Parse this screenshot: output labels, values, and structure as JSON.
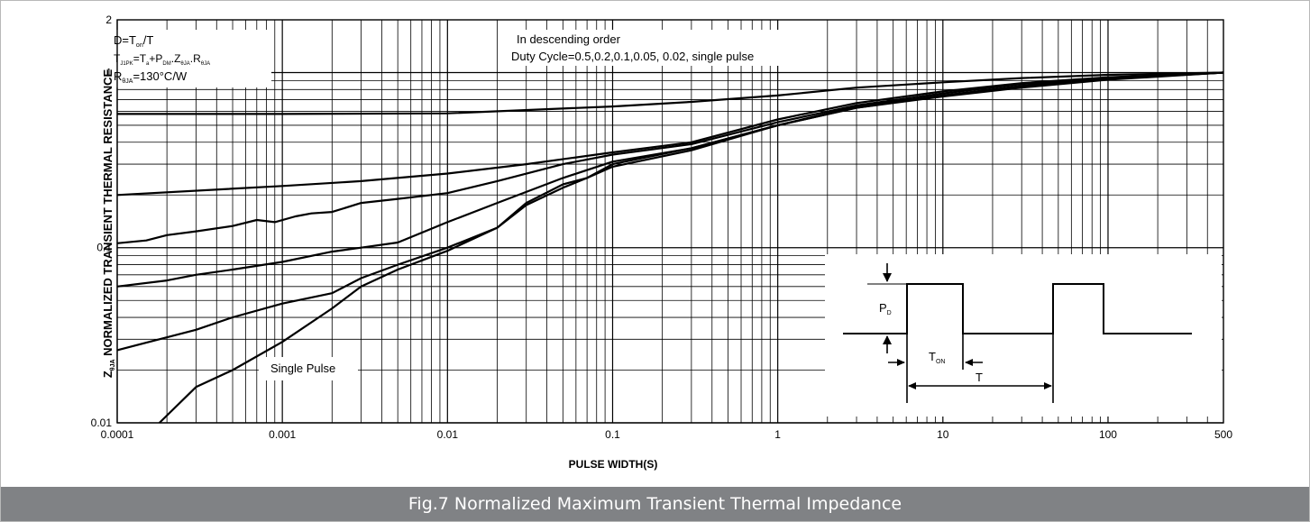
{
  "chart_data": {
    "type": "line",
    "x_scale": "log",
    "y_scale": "log",
    "xlim": [
      0.0001,
      500
    ],
    "ylim": [
      0.01,
      2
    ],
    "xlabel": "PULSE WIDTH(S)",
    "ylabel_main": "NORMALIZED TRANSIENT THERMAL RESISTANCE",
    "ylabel_prefix": "Z",
    "ylabel_sub": "θJA",
    "x_ticks": [
      {
        "v": 0.0001,
        "label": "0.0001"
      },
      {
        "v": 0.001,
        "label": "0.001"
      },
      {
        "v": 0.01,
        "label": "0.01"
      },
      {
        "v": 0.1,
        "label": "0.1"
      },
      {
        "v": 1,
        "label": "1"
      },
      {
        "v": 10,
        "label": "10"
      },
      {
        "v": 100,
        "label": "100"
      },
      {
        "v": 500,
        "label": "500"
      }
    ],
    "y_ticks": [
      {
        "v": 0.01,
        "label": "0.01"
      },
      {
        "v": 0.1,
        "label": "0.1"
      },
      {
        "v": 1,
        "label": "1"
      },
      {
        "v": 2,
        "label": "2"
      }
    ],
    "grid": true,
    "series": [
      {
        "x": [
          0.0001,
          0.001,
          0.01,
          0.1,
          0.3,
          1,
          3,
          10,
          30,
          100,
          500
        ],
        "y": [
          0.58,
          0.58,
          0.585,
          0.64,
          0.68,
          0.74,
          0.82,
          0.88,
          0.93,
          0.97,
          1.0
        ]
      },
      {
        "x": [
          0.0001,
          0.001,
          0.003,
          0.01,
          0.03,
          0.1,
          0.3,
          1,
          3,
          10,
          30,
          100,
          500
        ],
        "y": [
          0.2,
          0.225,
          0.24,
          0.265,
          0.3,
          0.35,
          0.4,
          0.54,
          0.67,
          0.78,
          0.87,
          0.94,
          1.0
        ]
      },
      {
        "x": [
          0.0001,
          0.00015,
          0.0002,
          0.0003,
          0.0005,
          0.0007,
          0.0009,
          0.0012,
          0.0015,
          0.002,
          0.003,
          0.005,
          0.01,
          0.02,
          0.05,
          0.1,
          0.3,
          1,
          3,
          10,
          30,
          100,
          500
        ],
        "y": [
          0.106,
          0.11,
          0.118,
          0.124,
          0.133,
          0.144,
          0.14,
          0.151,
          0.157,
          0.16,
          0.18,
          0.19,
          0.205,
          0.24,
          0.3,
          0.34,
          0.39,
          0.52,
          0.65,
          0.76,
          0.86,
          0.93,
          1.0
        ]
      },
      {
        "x": [
          0.0001,
          0.0002,
          0.0003,
          0.0005,
          0.001,
          0.002,
          0.003,
          0.005,
          0.01,
          0.02,
          0.05,
          0.1,
          0.3,
          1,
          3,
          10,
          30,
          100,
          500
        ],
        "y": [
          0.06,
          0.065,
          0.07,
          0.075,
          0.083,
          0.095,
          0.1,
          0.107,
          0.14,
          0.18,
          0.25,
          0.31,
          0.37,
          0.5,
          0.64,
          0.74,
          0.84,
          0.92,
          1.0
        ]
      },
      {
        "x": [
          0.0001,
          0.0003,
          0.0005,
          0.001,
          0.002,
          0.003,
          0.005,
          0.01,
          0.02,
          0.03,
          0.05,
          0.07,
          0.1,
          0.3,
          1,
          3,
          10,
          30,
          100,
          500
        ],
        "y": [
          0.026,
          0.034,
          0.04,
          0.048,
          0.055,
          0.067,
          0.08,
          0.1,
          0.13,
          0.175,
          0.22,
          0.25,
          0.3,
          0.37,
          0.5,
          0.63,
          0.74,
          0.83,
          0.92,
          1.0
        ]
      },
      {
        "x": [
          0.00018,
          0.0003,
          0.0005,
          0.001,
          0.002,
          0.003,
          0.005,
          0.01,
          0.02,
          0.03,
          0.05,
          0.07,
          0.1,
          0.3,
          1,
          3,
          10,
          30,
          100,
          500
        ],
        "y": [
          0.01,
          0.016,
          0.02,
          0.029,
          0.045,
          0.06,
          0.075,
          0.096,
          0.13,
          0.18,
          0.23,
          0.25,
          0.29,
          0.36,
          0.5,
          0.63,
          0.73,
          0.82,
          0.91,
          1.0
        ]
      }
    ],
    "annotations": {
      "note_line1_a": "D=T",
      "note_line1_sub": "on",
      "note_line1_b": "/T",
      "note_line2_a": "T",
      "note_line2_sub1": "J1PK",
      "note_line2_b": "=T",
      "note_line2_sub2": "a",
      "note_line2_c": "+P",
      "note_line2_sub3": "DM",
      "note_line2_d": ".Z",
      "note_line2_sub4": "θJA",
      "note_line2_e": ".R",
      "note_line2_sub5": "θJA",
      "note_line3_a": "R",
      "note_line3_sub": "θJA",
      "note_line3_b": "=130°C/W",
      "order_line1": "In descending order",
      "order_line2": "Duty Cycle=0.5,0.2,0.1,0.05, 0.02, single pulse",
      "single_pulse": "Single Pulse",
      "inset_pd": "P",
      "inset_pd_sub": "D",
      "inset_ton": "T",
      "inset_ton_sub": "ON",
      "inset_t": "T"
    }
  },
  "caption": "Fig.7 Normalized Maximum Transient Thermal Impedance"
}
